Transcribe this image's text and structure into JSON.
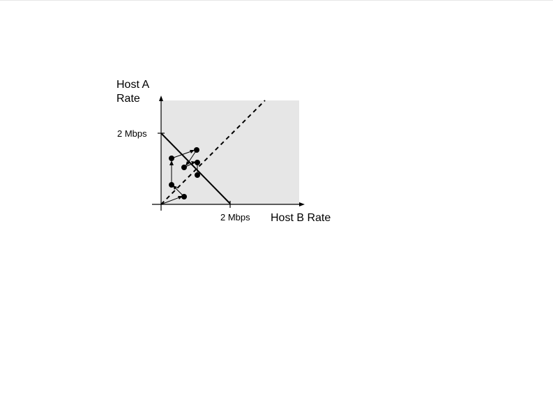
{
  "diagram": {
    "y_axis_title_line1": "Host A",
    "y_axis_title_line2": "Rate",
    "x_axis_title": "Host B Rate",
    "y_tick_label": "2 Mbps",
    "x_tick_label": "2 Mbps"
  },
  "colors": {
    "region_fill": "#e6e6e6",
    "ink": "#000000"
  }
}
